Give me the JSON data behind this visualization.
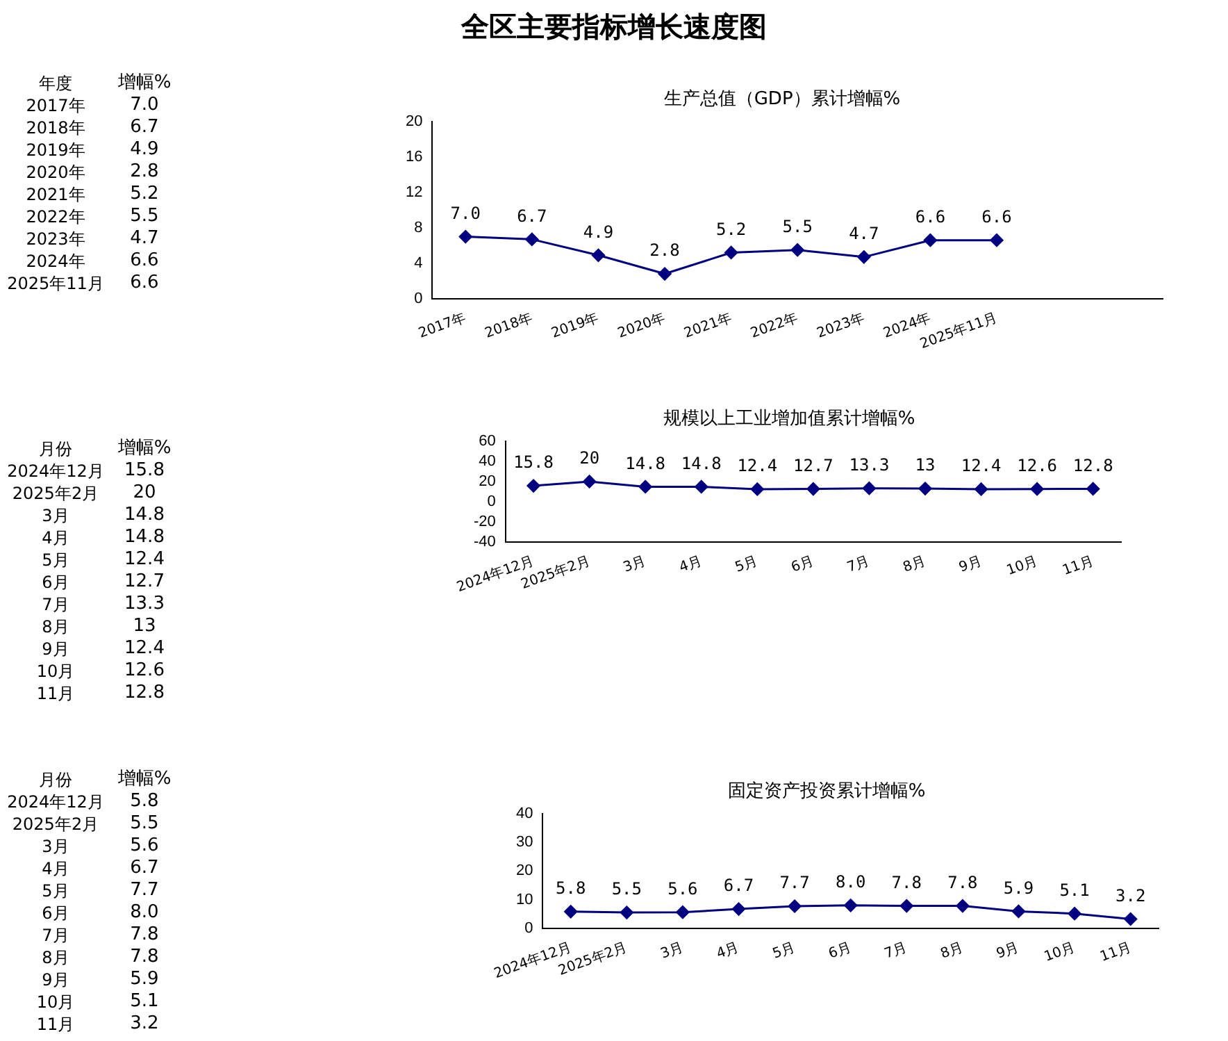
{
  "chart_data": [
    {
      "type": "line",
      "title": "生产总值（GDP）累计增幅%",
      "annotations": [
        "年度",
        "增幅%",
        "全区主要指标增长速度图"
      ],
      "categories": [
        "2017年",
        "2018年",
        "2019年",
        "2020年",
        "2021年",
        "2022年",
        "2023年",
        "2024年",
        "2025年11月",
        null,
        null
      ],
      "series": [
        {
          "color": "#000080",
          "values": [
            7.0,
            6.7,
            4.9,
            2.8,
            5.2,
            5.5,
            4.7,
            6.6,
            6.6,
            null,
            null
          ]
        }
      ],
      "value_labels": [
        "7.0",
        "6.7",
        "4.9",
        "2.8",
        "5.2",
        "5.5",
        "4.7",
        "6.6",
        "6.6",
        null,
        null
      ],
      "ylim": [
        0,
        20
      ],
      "yticks": [
        0,
        4,
        8,
        12,
        16,
        20
      ],
      "grid": false,
      "legend": false,
      "marker": "diamond"
    },
    {
      "type": "line",
      "title": "规模以上工业增加值累计增幅%",
      "annotations": [
        "月份",
        "增幅%"
      ],
      "categories": [
        "2024年12月",
        "2025年2月",
        "3月",
        "4月",
        "5月",
        "6月",
        "7月",
        "8月",
        "9月",
        "10月",
        "11月"
      ],
      "series": [
        {
          "color": "#000080",
          "values": [
            15.8,
            20,
            14.8,
            14.8,
            12.4,
            12.7,
            13.3,
            13,
            12.4,
            12.6,
            12.8
          ]
        }
      ],
      "value_labels": [
        "15.8",
        "20",
        "14.8",
        "14.8",
        "12.4",
        "12.7",
        "13.3",
        "13",
        "12.4",
        "12.6",
        "12.8"
      ],
      "ylim": [
        -40,
        60
      ],
      "yticks": [
        -40,
        -20,
        0,
        20,
        40,
        60
      ],
      "grid": false,
      "legend": false,
      "marker": "diamond"
    },
    {
      "type": "line",
      "title": "固定资产投资累计增幅%",
      "annotations": [
        "月份",
        "增幅%"
      ],
      "categories": [
        "2024年12月",
        "2025年2月",
        "3月",
        "4月",
        "5月",
        "6月",
        "7月",
        "8月",
        "9月",
        "10月",
        "11月"
      ],
      "series": [
        {
          "color": "#000080",
          "values": [
            5.8,
            5.5,
            5.6,
            6.7,
            7.7,
            8.0,
            7.8,
            7.8,
            5.9,
            5.1,
            3.2
          ]
        }
      ],
      "value_labels": [
        "5.8",
        "5.5",
        "5.6",
        "6.7",
        "7.7",
        "8.0",
        "7.8",
        "7.8",
        "5.9",
        "5.1",
        "3.2"
      ],
      "ylim": [
        0,
        40
      ],
      "yticks": [
        0,
        10,
        20,
        30,
        40
      ],
      "grid": false,
      "legend": false,
      "marker": "diamond"
    }
  ]
}
